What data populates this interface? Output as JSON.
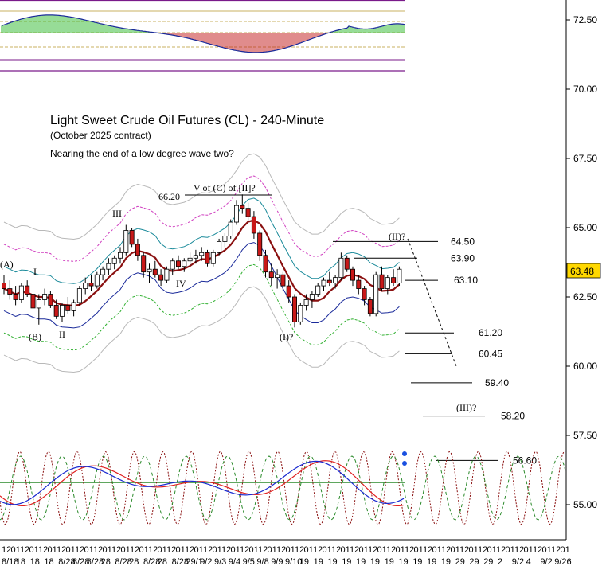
{
  "chart_data": {
    "type": "candlestick",
    "title": "Light Sweet Crude Oil Futures (CL) - 240-Minute",
    "subtitle": "(October 2025 contract)",
    "annotation": "Nearing the end of a low degree wave two?",
    "last_price": "63.48",
    "y_axis": {
      "min": 53.8,
      "max": 73.0,
      "side": "right",
      "ticks": [
        "72.50",
        "70.00",
        "67.50",
        "65.00",
        "62.50",
        "60.00",
        "57.50",
        "55.00"
      ],
      "tick_values": [
        72.5,
        70.0,
        67.5,
        65.0,
        62.5,
        60.0,
        57.5,
        55.0
      ]
    },
    "x_axis": {
      "hour_labels": [
        "12",
        "01",
        "12",
        "01",
        "12",
        "01",
        "12",
        "01",
        "12",
        "01",
        "12",
        "01",
        "12",
        "01",
        "12",
        "01",
        "12",
        "01",
        "12",
        "01",
        "12",
        "01",
        "12",
        "01",
        "12",
        "01",
        "12",
        "01",
        "12",
        "01",
        "12",
        "01",
        "12",
        "01",
        "12",
        "01",
        "12",
        "01",
        "12",
        "01",
        "12",
        "01",
        "12",
        "01",
        "12",
        "01",
        "12",
        "01",
        "12",
        "01",
        "12",
        "01",
        "12",
        "01",
        "12",
        "01",
        "12",
        "01",
        "12",
        "01",
        "12",
        "01"
      ],
      "date_labels": [
        "8/18",
        "18",
        "18",
        "18",
        "8/28",
        "8/28",
        "8/28",
        "28",
        "8/28",
        "28",
        "8/28",
        "28",
        "8/28",
        "29/1",
        "9/2",
        "9/3",
        "9/4",
        "9/5",
        "9/8",
        "9/9",
        "9/10",
        "19",
        "19",
        "19",
        "19",
        "19",
        "19",
        "19",
        "19",
        "19",
        "19",
        "19",
        "29",
        "29",
        "29",
        "2",
        "9/2",
        "4",
        "9/2",
        "9/26"
      ]
    },
    "price_levels": [
      {
        "label": "64.50",
        "value": 64.5
      },
      {
        "label": "63.90",
        "value": 63.9
      },
      {
        "label": "63.10",
        "value": 63.1
      },
      {
        "label": "61.20",
        "value": 61.2
      },
      {
        "label": "60.45",
        "value": 60.45
      },
      {
        "label": "59.40",
        "value": 59.4
      },
      {
        "label": "58.20",
        "value": 58.2
      },
      {
        "label": "56.60",
        "value": 56.6
      }
    ],
    "wave_labels": [
      {
        "label": "(A)",
        "price": 63.5
      },
      {
        "label": "I",
        "price": 63.3
      },
      {
        "label": "(B)",
        "price": 61.0
      },
      {
        "label": "II",
        "price": 61.2
      },
      {
        "label": "III",
        "price": 65.5
      },
      {
        "label": "IV",
        "price": 62.9
      },
      {
        "label": "66.20",
        "price": 66.2
      },
      {
        "label": "V of (C) of [II]?",
        "price": 66.45
      },
      {
        "label": "(I)?",
        "price": 61.1
      },
      {
        "label": "(II)?",
        "price": 64.65
      },
      {
        "label": "(III)?",
        "price": 58.5
      }
    ],
    "candles": {
      "fields": [
        "open",
        "high",
        "low",
        "close"
      ],
      "values": [
        [
          63.0,
          63.3,
          62.6,
          62.8
        ],
        [
          62.8,
          63.1,
          62.4,
          62.6
        ],
        [
          62.6,
          62.9,
          62.2,
          62.4
        ],
        [
          62.4,
          63.0,
          62.3,
          62.9
        ],
        [
          62.9,
          63.1,
          62.5,
          62.6
        ],
        [
          62.6,
          62.7,
          61.9,
          62.1
        ],
        [
          62.1,
          62.6,
          61.5,
          62.4
        ],
        [
          62.4,
          62.8,
          62.2,
          62.6
        ],
        [
          62.6,
          62.7,
          62.1,
          62.2
        ],
        [
          62.2,
          62.4,
          61.7,
          61.8
        ],
        [
          61.8,
          62.3,
          61.6,
          62.2
        ],
        [
          62.2,
          62.5,
          61.9,
          62.0
        ],
        [
          62.0,
          62.4,
          61.8,
          62.3
        ],
        [
          62.3,
          62.9,
          62.2,
          62.8
        ],
        [
          62.8,
          63.2,
          62.6,
          63.0
        ],
        [
          63.0,
          63.3,
          62.7,
          62.9
        ],
        [
          62.9,
          63.4,
          62.8,
          63.3
        ],
        [
          63.3,
          63.6,
          63.1,
          63.5
        ],
        [
          63.5,
          63.9,
          63.3,
          63.7
        ],
        [
          63.7,
          64.0,
          63.5,
          63.9
        ],
        [
          63.9,
          64.3,
          63.7,
          64.1
        ],
        [
          64.1,
          65.1,
          64.0,
          64.9
        ],
        [
          64.9,
          65.0,
          64.3,
          64.4
        ],
        [
          64.4,
          64.6,
          63.8,
          64.0
        ],
        [
          64.0,
          64.1,
          63.2,
          63.4
        ],
        [
          63.4,
          63.7,
          63.0,
          63.5
        ],
        [
          63.5,
          63.8,
          63.2,
          63.3
        ],
        [
          63.3,
          63.5,
          62.9,
          63.1
        ],
        [
          63.1,
          63.6,
          63.0,
          63.5
        ],
        [
          63.5,
          63.9,
          63.3,
          63.8
        ],
        [
          63.8,
          64.0,
          63.5,
          63.6
        ],
        [
          63.6,
          63.9,
          63.4,
          63.8
        ],
        [
          63.8,
          64.1,
          63.6,
          63.9
        ],
        [
          63.9,
          64.2,
          63.7,
          64.0
        ],
        [
          64.0,
          64.3,
          63.8,
          64.1
        ],
        [
          64.1,
          64.2,
          63.6,
          63.7
        ],
        [
          63.7,
          64.2,
          63.6,
          64.1
        ],
        [
          64.1,
          64.6,
          64.0,
          64.5
        ],
        [
          64.5,
          64.8,
          64.3,
          64.7
        ],
        [
          64.7,
          65.3,
          64.6,
          65.2
        ],
        [
          65.2,
          66.0,
          65.1,
          65.8
        ],
        [
          65.8,
          66.2,
          65.5,
          65.7
        ],
        [
          65.7,
          65.9,
          65.2,
          65.4
        ],
        [
          65.4,
          65.6,
          64.6,
          64.8
        ],
        [
          64.8,
          64.9,
          63.8,
          64.0
        ],
        [
          64.0,
          64.2,
          63.2,
          63.4
        ],
        [
          63.4,
          63.7,
          62.9,
          63.2
        ],
        [
          63.2,
          63.5,
          62.8,
          63.3
        ],
        [
          63.3,
          63.4,
          62.7,
          62.9
        ],
        [
          62.9,
          63.1,
          62.3,
          62.5
        ],
        [
          62.5,
          62.6,
          61.4,
          61.6
        ],
        [
          61.6,
          62.3,
          61.5,
          62.2
        ],
        [
          62.2,
          62.6,
          62.0,
          62.4
        ],
        [
          62.4,
          62.7,
          62.1,
          62.6
        ],
        [
          62.6,
          63.0,
          62.5,
          62.9
        ],
        [
          62.9,
          63.2,
          62.7,
          63.1
        ],
        [
          63.1,
          63.4,
          62.9,
          63.0
        ],
        [
          63.0,
          63.3,
          62.8,
          63.2
        ],
        [
          63.2,
          64.1,
          63.1,
          63.9
        ],
        [
          63.9,
          64.0,
          63.4,
          63.5
        ],
        [
          63.5,
          63.6,
          62.9,
          63.1
        ],
        [
          63.1,
          63.3,
          62.6,
          62.8
        ],
        [
          62.8,
          62.9,
          62.2,
          62.4
        ],
        [
          62.4,
          62.5,
          61.8,
          61.9
        ],
        [
          61.9,
          63.4,
          61.8,
          63.3
        ],
        [
          63.3,
          63.6,
          62.7,
          62.8
        ],
        [
          62.8,
          63.3,
          62.6,
          63.2
        ],
        [
          63.2,
          63.5,
          62.9,
          63.0
        ],
        [
          63.0,
          63.6,
          62.9,
          63.5
        ]
      ]
    }
  }
}
